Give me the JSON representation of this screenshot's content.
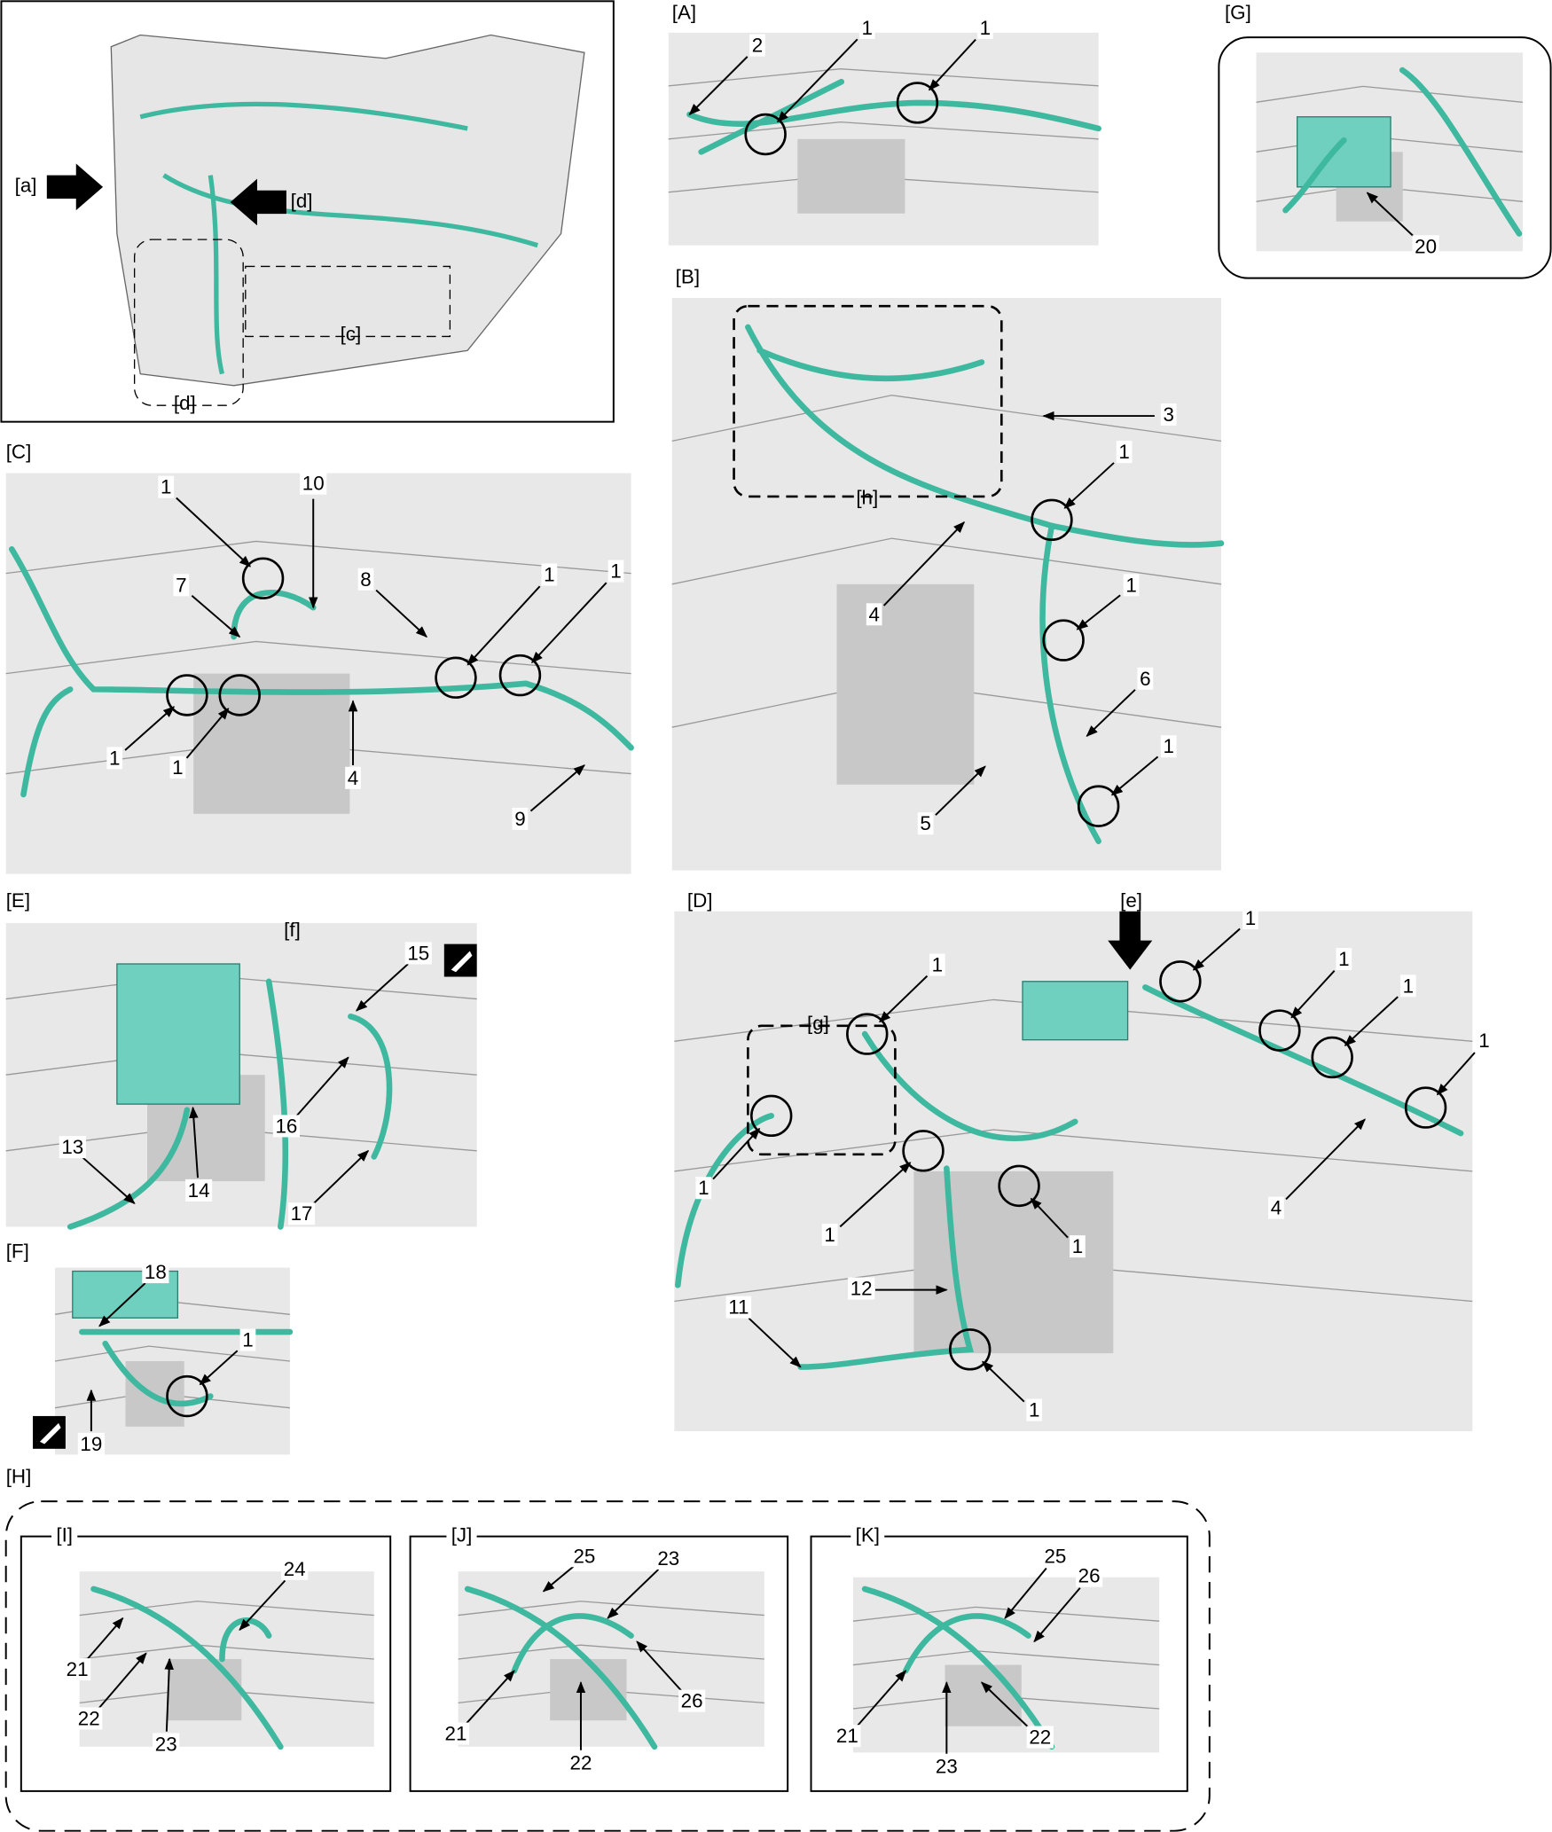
{
  "overview": {
    "labels": [
      "[a]",
      "[d]",
      "[c]",
      "[d]"
    ]
  },
  "panels": [
    {
      "label": "[A]",
      "callouts": [
        "2",
        "1",
        "1"
      ]
    },
    {
      "label": "[G]",
      "callouts": [
        "20"
      ]
    },
    {
      "label": "[B]",
      "sublabels": [
        "[h]"
      ],
      "callouts": [
        "3",
        "1",
        "4",
        "1",
        "6",
        "1",
        "5"
      ]
    },
    {
      "label": "[C]",
      "callouts": [
        "1",
        "10",
        "7",
        "8",
        "1",
        "1",
        "1",
        "1",
        "4",
        "9"
      ]
    },
    {
      "label": "[E]",
      "sublabels": [
        "[f]"
      ],
      "callouts": [
        "15",
        "16",
        "14",
        "13",
        "17"
      ]
    },
    {
      "label": "[D]",
      "sublabels": [
        "[e]",
        "[g]"
      ],
      "callouts": [
        "1",
        "1",
        "1",
        "1",
        "1",
        "4",
        "1",
        "1",
        "1",
        "12",
        "11",
        "1"
      ]
    },
    {
      "label": "[F]",
      "callouts": [
        "18",
        "1",
        "19"
      ]
    },
    {
      "label": "[H]",
      "callouts": []
    },
    {
      "label": "[I]",
      "callouts": [
        "24",
        "21",
        "22",
        "23"
      ]
    },
    {
      "label": "[J]",
      "callouts": [
        "25",
        "23",
        "26",
        "21",
        "22"
      ]
    },
    {
      "label": "[K]",
      "callouts": [
        "25",
        "26",
        "21",
        "23",
        "22"
      ]
    }
  ]
}
